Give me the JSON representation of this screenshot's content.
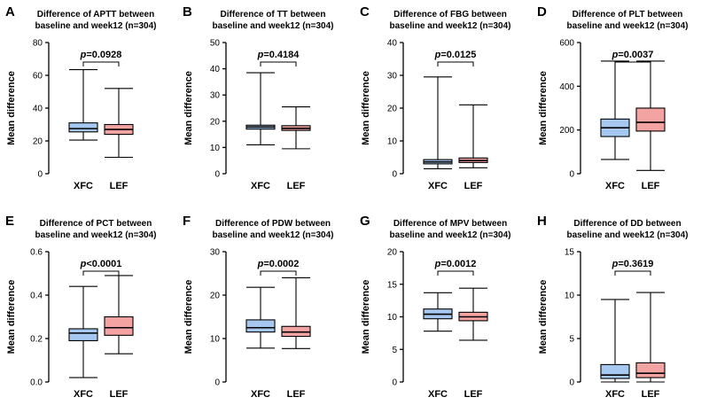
{
  "colors": {
    "XFC": "#a6c8f0",
    "LEF": "#f4a3a3"
  },
  "ylabel": "Mean difference",
  "categories": [
    "XFC",
    "LEF"
  ],
  "chart_data": [
    {
      "type": "box",
      "letter": "A",
      "title_line1": "Difference of APTT between",
      "title_line2": "baseline and week12 (n=304)",
      "p_prefix": "p",
      "p_suffix": "=0.0928",
      "ylim": [
        0,
        80
      ],
      "ticks": [
        "0",
        "20",
        "40",
        "60",
        "80"
      ],
      "series": [
        {
          "name": "XFC",
          "min": 20.5,
          "q1": 25.5,
          "median": 27.5,
          "q3": 31,
          "max": 63.5
        },
        {
          "name": "LEF",
          "min": 10,
          "q1": 24,
          "median": 27,
          "q3": 30,
          "max": 52
        }
      ]
    },
    {
      "type": "box",
      "letter": "B",
      "title_line1": "Difference of TT between",
      "title_line2": "baseline and week12 (n=304)",
      "p_prefix": "p",
      "p_suffix": "=0.4184",
      "ylim": [
        0,
        50
      ],
      "ticks": [
        "0",
        "10",
        "20",
        "30",
        "40",
        "50"
      ],
      "series": [
        {
          "name": "XFC",
          "min": 11,
          "q1": 17,
          "median": 17.8,
          "q3": 18.5,
          "max": 38.5
        },
        {
          "name": "LEF",
          "min": 9.5,
          "q1": 16.5,
          "median": 17.3,
          "q3": 18.3,
          "max": 25.5
        }
      ]
    },
    {
      "type": "box",
      "letter": "C",
      "title_line1": "Difference of FBG between",
      "title_line2": "baseline and week12 (n=304)",
      "p_prefix": "p",
      "p_suffix": "=0.0125",
      "ylim": [
        0,
        40
      ],
      "ticks": [
        "0",
        "10",
        "20",
        "30",
        "40"
      ],
      "series": [
        {
          "name": "XFC",
          "min": 1.5,
          "q1": 3,
          "median": 3.6,
          "q3": 4.3,
          "max": 29.5
        },
        {
          "name": "LEF",
          "min": 1.8,
          "q1": 3.4,
          "median": 4,
          "q3": 4.8,
          "max": 21
        }
      ]
    },
    {
      "type": "box",
      "letter": "D",
      "title_line1": "Difference of PLT between",
      "title_line2": "baseline and week12 (n=304)",
      "p_prefix": "p",
      "p_suffix": "=0.0037",
      "ylim": [
        0,
        600
      ],
      "ticks": [
        "0",
        "200",
        "400",
        "600"
      ],
      "series": [
        {
          "name": "XFC",
          "min": 65,
          "q1": 170,
          "median": 210,
          "q3": 250,
          "max": 515
        },
        {
          "name": "LEF",
          "min": 15,
          "q1": 195,
          "median": 235,
          "q3": 300,
          "max": 515
        }
      ]
    },
    {
      "type": "box",
      "letter": "E",
      "title_line1": "Difference of PCT between",
      "title_line2": "baseline and week12 (n=304)",
      "p_prefix": "p",
      "p_suffix": "<0.0001",
      "ylim": [
        0,
        0.6
      ],
      "ticks": [
        "0.0",
        "0.2",
        "0.4",
        "0.6"
      ],
      "series": [
        {
          "name": "XFC",
          "min": 0.02,
          "q1": 0.19,
          "median": 0.225,
          "q3": 0.245,
          "max": 0.44
        },
        {
          "name": "LEF",
          "min": 0.13,
          "q1": 0.215,
          "median": 0.25,
          "q3": 0.3,
          "max": 0.49
        }
      ]
    },
    {
      "type": "box",
      "letter": "F",
      "title_line1": "Difference of PDW between",
      "title_line2": "baseline and week12 (n=304)",
      "p_prefix": "p",
      "p_suffix": "=0.0002",
      "ylim": [
        0,
        30
      ],
      "ticks": [
        "0",
        "10",
        "20",
        "30"
      ],
      "series": [
        {
          "name": "XFC",
          "min": 7.8,
          "q1": 11.5,
          "median": 12.5,
          "q3": 14.3,
          "max": 21.8
        },
        {
          "name": "LEF",
          "min": 7.7,
          "q1": 10.5,
          "median": 11.5,
          "q3": 12.8,
          "max": 24
        }
      ]
    },
    {
      "type": "box",
      "letter": "G",
      "title_line1": "Difference of MPV between",
      "title_line2": "baseline and week12 (n=304)",
      "p_prefix": "p",
      "p_suffix": "=0.0012",
      "ylim": [
        0,
        20
      ],
      "ticks": [
        "0",
        "5",
        "10",
        "15",
        "20"
      ],
      "series": [
        {
          "name": "XFC",
          "min": 7.8,
          "q1": 9.7,
          "median": 10.4,
          "q3": 11.2,
          "max": 13.7
        },
        {
          "name": "LEF",
          "min": 6.4,
          "q1": 9.4,
          "median": 10,
          "q3": 10.7,
          "max": 14.4
        }
      ]
    },
    {
      "type": "box",
      "letter": "H",
      "title_line1": "Difference of DD between",
      "title_line2": "baseline and week12 (n=304)",
      "p_prefix": "p",
      "p_suffix": "=0.3619",
      "ylim": [
        0,
        15
      ],
      "ticks": [
        "0",
        "5",
        "10",
        "15"
      ],
      "series": [
        {
          "name": "XFC",
          "min": 0,
          "q1": 0.4,
          "median": 0.8,
          "q3": 2,
          "max": 9.5
        },
        {
          "name": "LEF",
          "min": 0,
          "q1": 0.5,
          "median": 1,
          "q3": 2.2,
          "max": 10.3
        }
      ]
    }
  ]
}
